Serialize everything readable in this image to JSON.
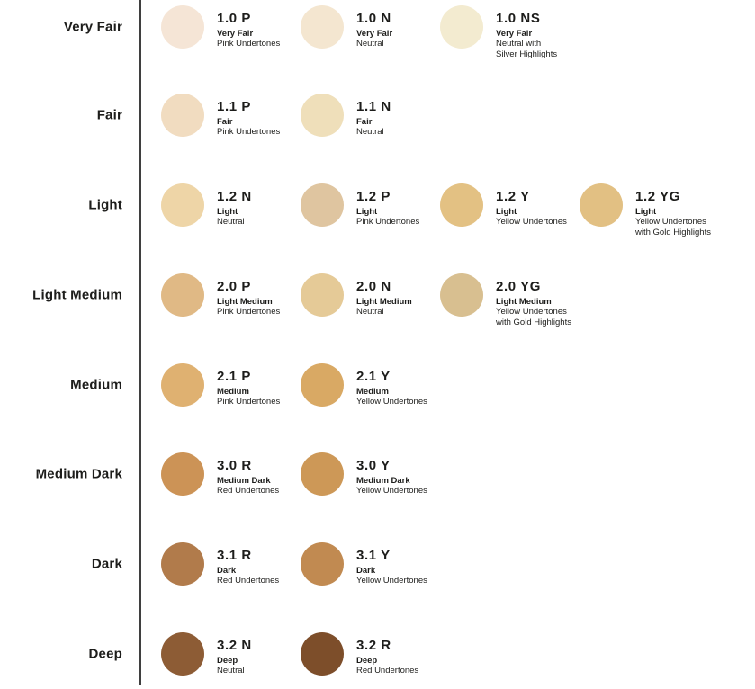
{
  "page": {
    "background_color": "#ffffff",
    "divider_color": "#3f3f3f",
    "text_color": "#1d1d1b"
  },
  "rows": [
    {
      "label": "Very Fair",
      "shades": [
        {
          "code": "1.0 P",
          "name": "Very Fair",
          "undertone": "Pink Undertones",
          "color": "#f5e5d6"
        },
        {
          "code": "1.0 N",
          "name": "Very Fair",
          "undertone": "Neutral",
          "color": "#f4e6d0"
        },
        {
          "code": "1.0 NS",
          "name": "Very Fair",
          "undertone": "Neutral with\nSilver Highlights",
          "color": "#f3ebd0"
        }
      ]
    },
    {
      "label": "Fair",
      "shades": [
        {
          "code": "1.1 P",
          "name": "Fair",
          "undertone": "Pink Undertones",
          "color": "#f1dcc0"
        },
        {
          "code": "1.1 N",
          "name": "Fair",
          "undertone": "Neutral",
          "color": "#efdfba"
        }
      ]
    },
    {
      "label": "Light",
      "shades": [
        {
          "code": "1.2 N",
          "name": "Light",
          "undertone": "Neutral",
          "color": "#eed5a7"
        },
        {
          "code": "1.2 P",
          "name": "Light",
          "undertone": "Pink Undertones",
          "color": "#dfc5a0"
        },
        {
          "code": "1.2 Y",
          "name": "Light",
          "undertone": "Yellow Undertones",
          "color": "#e3c183"
        },
        {
          "code": "1.2 YG",
          "name": "Light",
          "undertone": "Yellow Undertones\nwith Gold Highlights",
          "color": "#e2c083"
        }
      ]
    },
    {
      "label": "Light Medium",
      "shades": [
        {
          "code": "2.0 P",
          "name": "Light Medium",
          "undertone": "Pink Undertones",
          "color": "#e0b985"
        },
        {
          "code": "2.0 N",
          "name": "Light Medium",
          "undertone": "Neutral",
          "color": "#e5ca97"
        },
        {
          "code": "2.0 YG",
          "name": "Light Medium",
          "undertone": "Yellow Undertones\nwith Gold Highlights",
          "color": "#d8bf90"
        }
      ]
    },
    {
      "label": "Medium",
      "shades": [
        {
          "code": "2.1 P",
          "name": "Medium",
          "undertone": "Pink Undertones",
          "color": "#dfb171"
        },
        {
          "code": "2.1 Y",
          "name": "Medium",
          "undertone": "Yellow Undertones",
          "color": "#d9a964"
        }
      ]
    },
    {
      "label": "Medium Dark",
      "shades": [
        {
          "code": "3.0 R",
          "name": "Medium Dark",
          "undertone": "Red Undertones",
          "color": "#cc9356"
        },
        {
          "code": "3.0 Y",
          "name": "Medium Dark",
          "undertone": "Yellow Undertones",
          "color": "#cd9857"
        }
      ]
    },
    {
      "label": "Dark",
      "shades": [
        {
          "code": "3.1 R",
          "name": "Dark",
          "undertone": "Red Undertones",
          "color": "#b17b4b"
        },
        {
          "code": "3.1 Y",
          "name": "Dark",
          "undertone": "Yellow Undertones",
          "color": "#c18a51"
        }
      ]
    },
    {
      "label": "Deep",
      "shades": [
        {
          "code": "3.2 N",
          "name": "Deep",
          "undertone": "Neutral",
          "color": "#8d5c35"
        },
        {
          "code": "3.2 R",
          "name": "Deep",
          "undertone": "Red Undertones",
          "color": "#7d4e2a"
        }
      ]
    }
  ]
}
